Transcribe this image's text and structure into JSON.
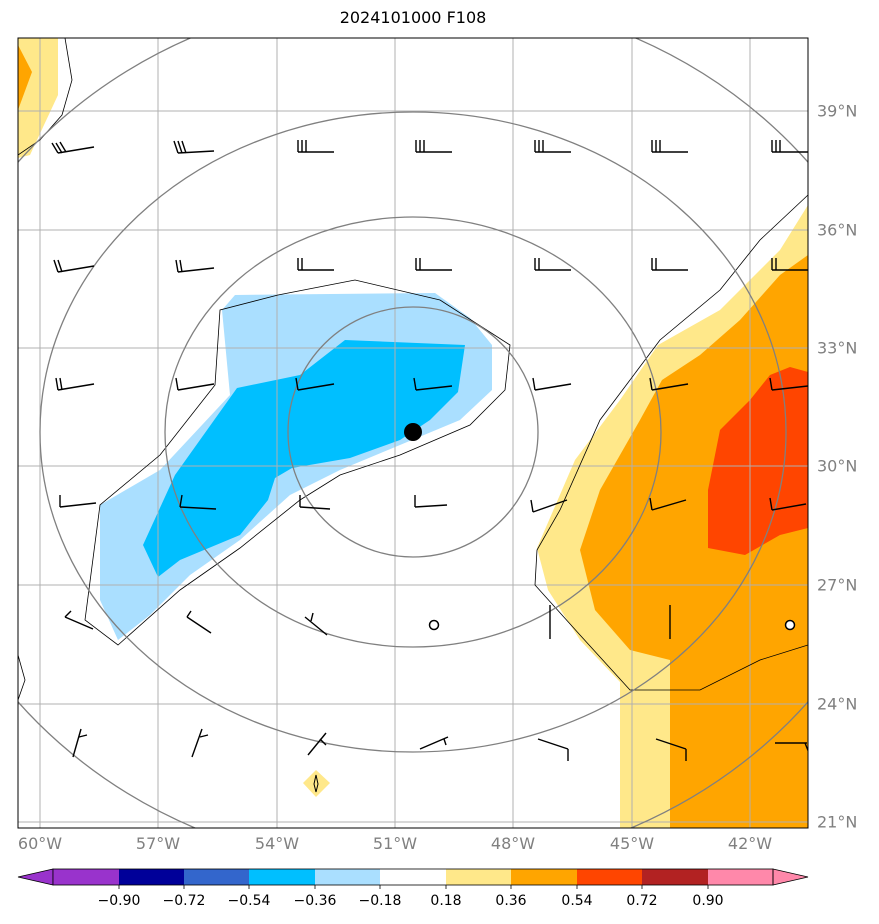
{
  "title": "2024101000 F108",
  "lon_labels": [
    "60°W",
    "57°W",
    "54°W",
    "51°W",
    "48°W",
    "45°W",
    "42°W"
  ],
  "lat_labels": [
    "39°N",
    "36°N",
    "33°N",
    "30°N",
    "27°N",
    "24°N",
    "21°N"
  ],
  "colorbar": {
    "levels": [
      "−0.90",
      "−0.72",
      "−0.54",
      "−0.36",
      "−0.18",
      "0.18",
      "0.36",
      "0.54",
      "0.72",
      "0.90"
    ],
    "colors": [
      "#9933cc",
      "#000099",
      "#3366cc",
      "#00bfff",
      "#aadfff",
      "#ffffff",
      "#ffe88a",
      "#ffa500",
      "#ff4500",
      "#b22222",
      "#ff88aa"
    ]
  },
  "center_marker": {
    "lon": -50.8,
    "lat": 30.9
  },
  "chart_data": {
    "type": "map",
    "lon_range": [
      -60.5,
      -40.5
    ],
    "lat_range": [
      20.9,
      40.9
    ],
    "grid": true,
    "contour_colors": {
      "blue_light": "#aadfff",
      "blue": "#00bfff",
      "yellow": "#ffe88a",
      "orange": "#ffa500",
      "red": "#ff4500"
    }
  }
}
